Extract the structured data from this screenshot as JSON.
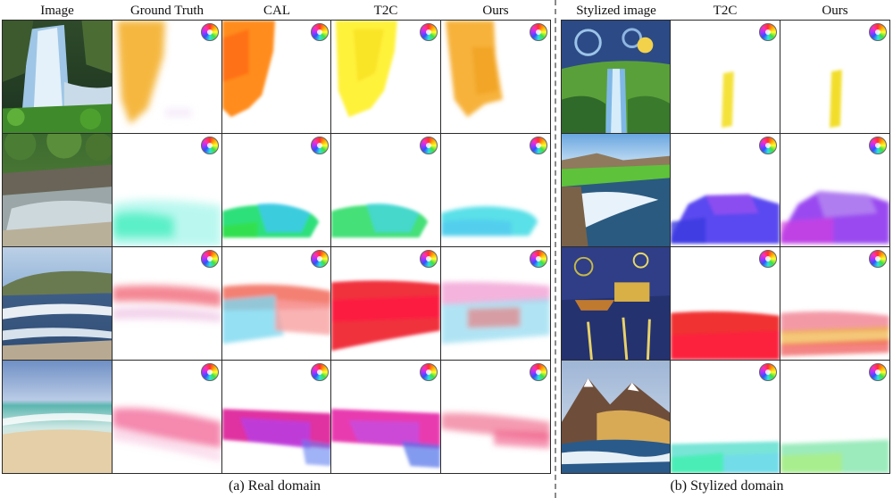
{
  "headers": {
    "real": [
      "Image",
      "Ground Truth",
      "CAL",
      "T2C",
      "Ours"
    ],
    "stylized": [
      "Stylized image",
      "T2C",
      "Ours"
    ]
  },
  "captions": {
    "real": "(a) Real domain",
    "stylized": "(b) Stylized domain"
  },
  "colors": {
    "cell_border": "#2a2a2a",
    "divider": "#8a8a8a"
  }
}
